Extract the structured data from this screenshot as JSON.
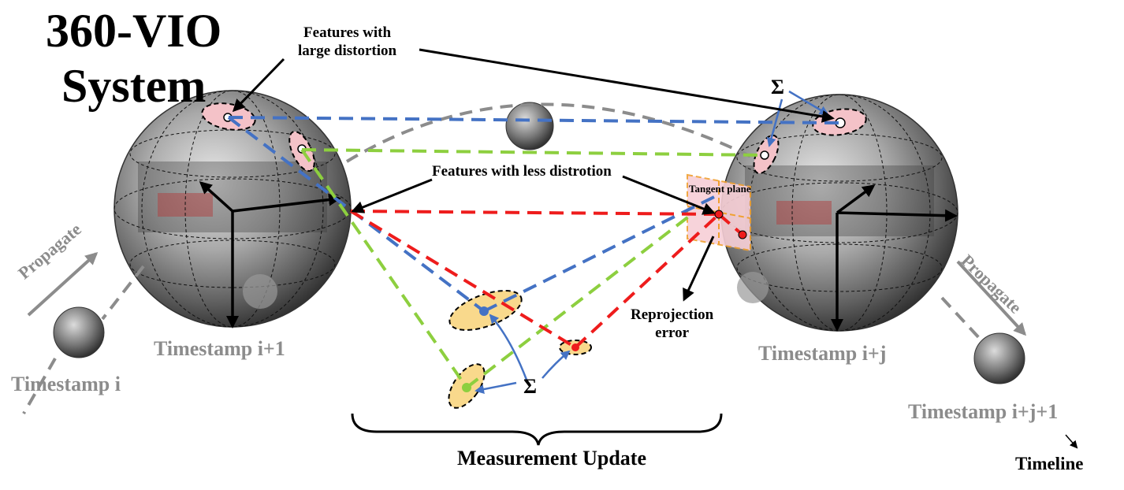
{
  "title_line1": "360-VIO",
  "title_line2": "System",
  "labels": {
    "features_large_line1": "Features with",
    "features_large_line2": "large distortion",
    "features_less": "Features with less distrotion",
    "tangent_plane": "Tangent plane",
    "reprojection_line1": "Reprojection",
    "reprojection_line2": "error",
    "measurement_update": "Measurement Update",
    "sigma": "Σ",
    "timeline": "Timeline",
    "propagate": "Propagate"
  },
  "timestamps": {
    "t_i": "Timestamp i",
    "t_i1": "Timestamp i+1",
    "t_ij": "Timestamp i+j",
    "t_ij1": "Timestamp i+j+1"
  },
  "colors": {
    "blue": "#4472c4",
    "green": "#8dcf3f",
    "red": "#ee1c1c",
    "gray": "#8c8c8c",
    "ellipse_pink": "#f4c2c8",
    "ellipse_yellow": "#f9d98c",
    "tangent_fill": "#f7cfd6",
    "tangent_border": "#f0a030"
  },
  "icons": [
    "panorama-sphere",
    "axis-arrows",
    "covariance-ellipse",
    "curly-brace"
  ]
}
